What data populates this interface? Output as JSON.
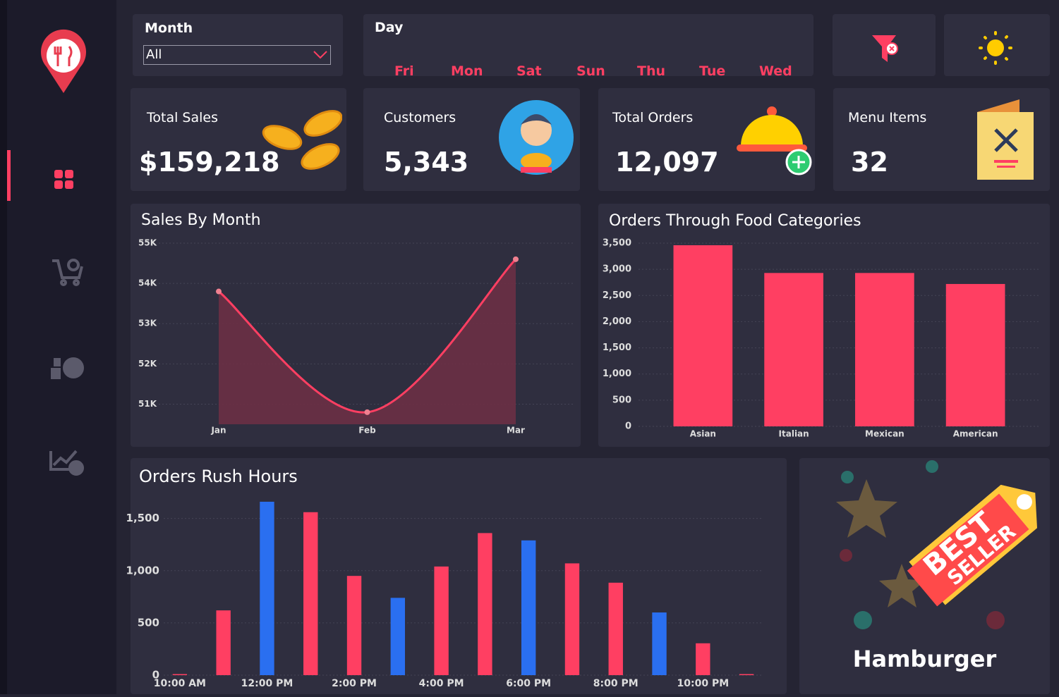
{
  "filters": {
    "month_label": "Month",
    "month_value": "All",
    "day_label": "Day",
    "days": [
      "Fri",
      "Mon",
      "Sat",
      "Sun",
      "Thu",
      "Tue",
      "Wed"
    ]
  },
  "kpis": [
    {
      "label": "Total Sales",
      "value": "$159,218"
    },
    {
      "label": "Customers",
      "value": "5,343"
    },
    {
      "label": "Total Orders",
      "value": "12,097"
    },
    {
      "label": "Menu Items",
      "value": "32"
    }
  ],
  "chart_data": [
    {
      "type": "line",
      "title": "Sales By Month",
      "categories": [
        "Jan",
        "Feb",
        "Mar"
      ],
      "values": [
        53800,
        50800,
        54600
      ],
      "color": "#ff3f62",
      "fill_color": "#6b3045",
      "ylim": [
        50500,
        55000
      ],
      "yticks": [
        {
          "value": 51000,
          "label": "51K"
        },
        {
          "value": 52000,
          "label": "52K"
        },
        {
          "value": 53000,
          "label": "53K"
        },
        {
          "value": 54000,
          "label": "54K"
        },
        {
          "value": 55000,
          "label": "55K"
        }
      ],
      "grid": true
    },
    {
      "type": "bar",
      "title": "Orders Through Food Categories",
      "categories": [
        "Asian",
        "Italian",
        "Mexican",
        "American"
      ],
      "values": [
        3460,
        2930,
        2930,
        2720
      ],
      "color": "#ff3f62",
      "ylim": [
        0,
        3500
      ],
      "yticks": [
        0,
        500,
        {
          "value": 1000,
          "label": "1,000"
        },
        {
          "value": 1500,
          "label": "1,500"
        },
        {
          "value": 2000,
          "label": "2,000"
        },
        {
          "value": 2500,
          "label": "2,500"
        },
        {
          "value": 3000,
          "label": "3,000"
        },
        {
          "value": 3500,
          "label": "3,500"
        }
      ],
      "grid": true
    },
    {
      "type": "bar",
      "title": "Orders Rush Hours",
      "categories": [
        "10:00 AM",
        null,
        "12:00 PM",
        null,
        "2:00 PM",
        null,
        "4:00 PM",
        null,
        "6:00 PM",
        null,
        "8:00 PM",
        null,
        "10:00 PM",
        null
      ],
      "values": [
        10,
        620,
        1660,
        1560,
        950,
        740,
        1040,
        1360,
        1290,
        1070,
        885,
        600,
        305,
        10
      ],
      "colors": [
        "#ff3f62",
        "#ff3f62",
        "#2a6ff0",
        "#ff3f62",
        "#ff3f62",
        "#2a6ff0",
        "#ff3f62",
        "#ff3f62",
        "#2a6ff0",
        "#ff3f62",
        "#ff3f62",
        "#2a6ff0",
        "#ff3f62",
        "#ff3f62"
      ],
      "ylim": [
        0,
        1700
      ],
      "yticks": [
        0,
        500,
        {
          "value": 1000,
          "label": "1,000"
        },
        {
          "value": 1500,
          "label": "1,500"
        }
      ],
      "grid": true
    }
  ],
  "best_seller": {
    "badge": [
      "BEST",
      "SELLER"
    ],
    "product": "Hamburger"
  }
}
